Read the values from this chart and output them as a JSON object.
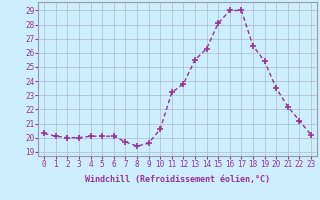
{
  "x": [
    0,
    1,
    2,
    3,
    4,
    5,
    6,
    7,
    8,
    9,
    10,
    11,
    12,
    13,
    14,
    15,
    16,
    17,
    18,
    19,
    20,
    21,
    22,
    23
  ],
  "y": [
    20.3,
    20.1,
    20.0,
    20.0,
    20.1,
    20.1,
    20.1,
    19.7,
    19.4,
    19.6,
    20.6,
    23.2,
    23.8,
    25.5,
    26.3,
    28.1,
    29.0,
    29.0,
    26.5,
    25.4,
    23.5,
    22.2,
    21.2,
    20.2
  ],
  "line_color": "#993399",
  "marker": "+",
  "marker_size": 4,
  "marker_lw": 1.2,
  "line_width": 1.0,
  "bg_color": "#cceeff",
  "grid_color": "#aabbcc",
  "yticks": [
    19,
    20,
    21,
    22,
    23,
    24,
    25,
    26,
    27,
    28,
    29
  ],
  "xlabel": "Windchill (Refroidissement éolien,°C)",
  "ylim": [
    18.7,
    29.6
  ],
  "xlim": [
    -0.5,
    23.5
  ],
  "tick_fontsize": 5.5,
  "xlabel_fontsize": 6.0
}
